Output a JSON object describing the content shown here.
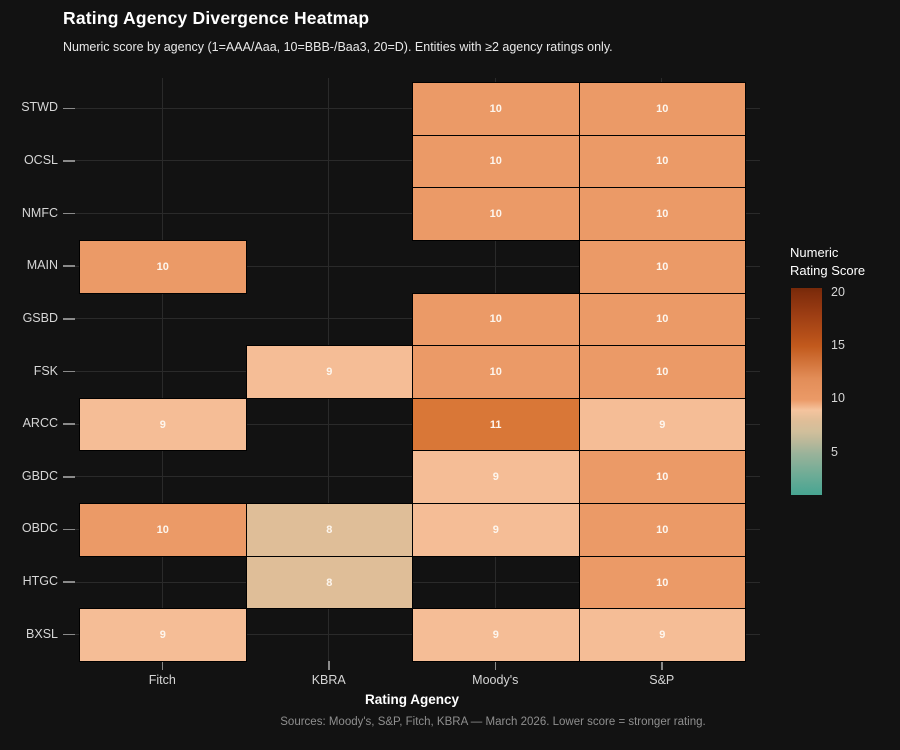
{
  "header": {
    "title": "Rating Agency Divergence Heatmap",
    "subtitle": "Numeric score by agency (1=AAA/Aaa, 10=BBB-/Baa3, 20=D). Entities with ≥2 agency ratings only."
  },
  "footer": {
    "caption": "Sources: Moody's, S&P, Fitch, KBRA — March 2026. Lower score = stronger rating."
  },
  "chart_data": {
    "type": "heatmap",
    "title": "Rating Agency Divergence Heatmap",
    "subtitle": "Numeric score by agency (1=AAA/Aaa, 10=BBB-/Baa3, 20=D). Entities with ≥2 agency ratings only.",
    "xlabel": "Rating Agency",
    "ylabel": "",
    "x_categories": [
      "Fitch",
      "KBRA",
      "Moody's",
      "S&P"
    ],
    "y_categories": [
      "STWD",
      "OCSL",
      "NMFC",
      "MAIN",
      "GSBD",
      "FSK",
      "ARCC",
      "GBDC",
      "OBDC",
      "HTGC",
      "BXSL"
    ],
    "values": [
      [
        null,
        null,
        10,
        10
      ],
      [
        null,
        null,
        10,
        10
      ],
      [
        null,
        null,
        10,
        10
      ],
      [
        10,
        null,
        null,
        10
      ],
      [
        null,
        null,
        10,
        10
      ],
      [
        null,
        9,
        10,
        10
      ],
      [
        9,
        null,
        11,
        9
      ],
      [
        null,
        null,
        9,
        10
      ],
      [
        10,
        8,
        9,
        10
      ],
      [
        null,
        8,
        null,
        10
      ],
      [
        9,
        null,
        9,
        9
      ]
    ],
    "value_colors": {
      "8": "#DFBE98",
      "9": "#F5BD96",
      "10": "#EB9A67",
      "11": "#D97737"
    },
    "cell_text_color": "#fdf6ee",
    "grid": true,
    "legend": {
      "title": "Numeric\nRating Score",
      "position": "right",
      "ticks": [
        20,
        15,
        10,
        5
      ],
      "domain": [
        1,
        20.5
      ],
      "gradient_stops": [
        [
          "#762909",
          0
        ],
        [
          "#802D0C",
          2.4
        ],
        [
          "#9C3D13",
          12.7
        ],
        [
          "#B54F19",
          23
        ],
        [
          "#C25A1D",
          28.2
        ],
        [
          "#E28D58",
          43.7
        ],
        [
          "#EB9A67",
          54
        ],
        [
          "#F5C49E",
          59
        ],
        [
          "#DFBE98",
          64.3
        ],
        [
          "#D1BF9B",
          69.4
        ],
        [
          "#B8B89A",
          74.6
        ],
        [
          "#9BB39A",
          79.8
        ],
        [
          "#6FAC96",
          90
        ],
        [
          "#47A592",
          100
        ]
      ]
    }
  }
}
